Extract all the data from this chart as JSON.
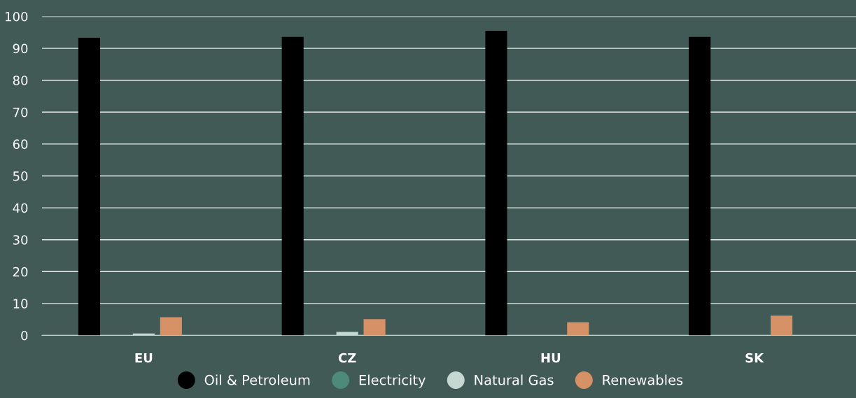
{
  "chart_data": {
    "type": "bar",
    "categories": [
      "EU",
      "CZ",
      "HU",
      "SK"
    ],
    "series": [
      {
        "name": "Oil & Petroleum",
        "color": "#000000",
        "values": [
          93.3,
          93.6,
          95.5,
          93.6
        ]
      },
      {
        "name": "Electricity",
        "color": "#4d8a78",
        "values": [
          null,
          null,
          null,
          null
        ]
      },
      {
        "name": "Natural Gas",
        "color": "#c5d8d2",
        "values": [
          0.6,
          1.1,
          0.1,
          0
        ]
      },
      {
        "name": "Renewables",
        "color": "#d79166",
        "values": [
          5.7,
          5.1,
          4.1,
          6.2
        ]
      }
    ],
    "ylim": [
      0,
      100
    ],
    "yticks": [
      0,
      10,
      20,
      30,
      40,
      50,
      60,
      70,
      80,
      90,
      100
    ],
    "grid": "y",
    "legend": "bottom"
  }
}
